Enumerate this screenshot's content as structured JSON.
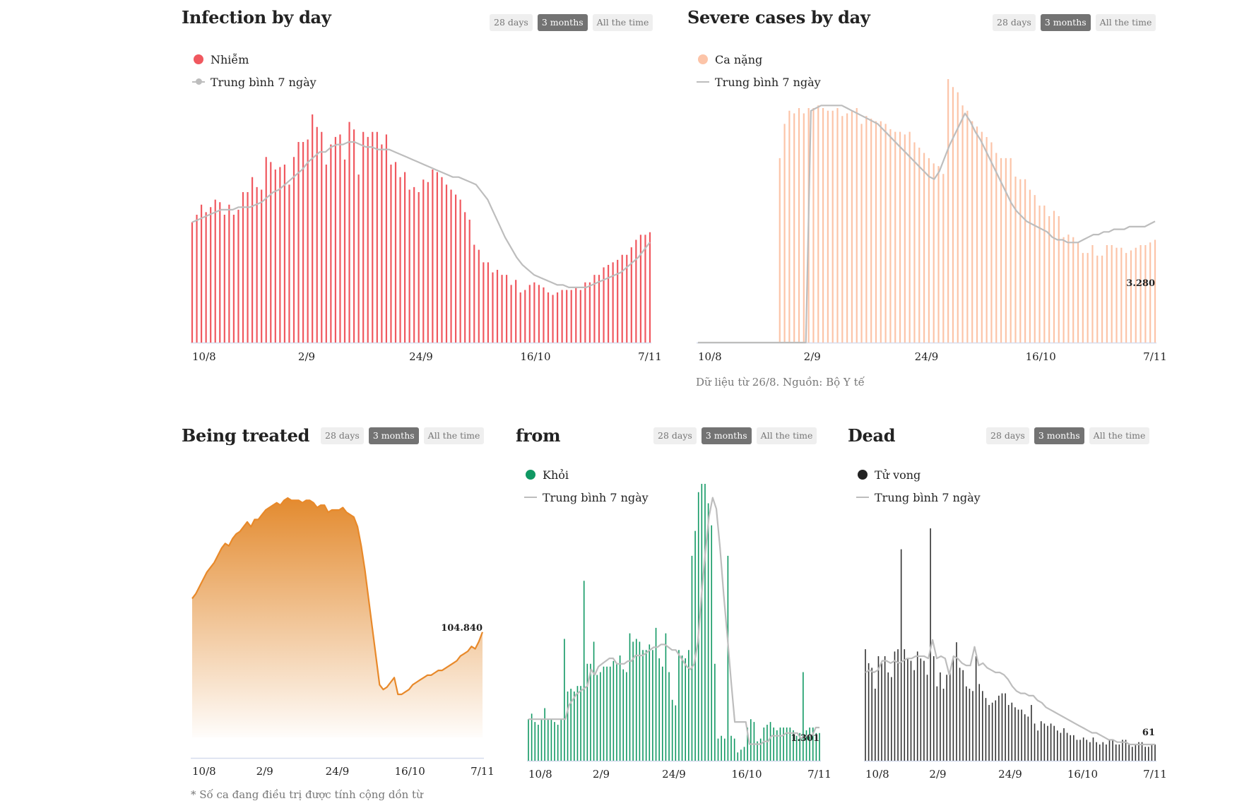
{
  "range_buttons": [
    "28 days",
    "3 months",
    "All the time"
  ],
  "active_range": "3 months",
  "x_ticks": [
    "10/8",
    "2/9",
    "24/9",
    "16/10",
    "7/11"
  ],
  "chart_data": [
    {
      "id": "infection",
      "type": "bar",
      "title": "Infection by day",
      "xlabel": "",
      "ylabel": "",
      "x_start": "10/8",
      "x_end": "7/11",
      "x_ticks": [
        "10/8",
        "2/9",
        "24/9",
        "16/10",
        "7/11"
      ],
      "legend": [
        {
          "label": "Nhiễm",
          "marker": "dot",
          "color": "#f0585f"
        },
        {
          "label": "Trung bình 7 ngày",
          "marker": "line-dot",
          "color": "#bdbdbd"
        }
      ],
      "legend_position": "top-left",
      "ylim": [
        0,
        100
      ],
      "values_note": "relative index (no y-axis shown)",
      "series": [
        {
          "name": "Nhiễm",
          "color": "#f0585f",
          "values": [
            48,
            51,
            55,
            52,
            54,
            57,
            56,
            51,
            55,
            51,
            53,
            60,
            60,
            66,
            62,
            61,
            74,
            72,
            69,
            70,
            71,
            63,
            74,
            80,
            80,
            81,
            91,
            86,
            84,
            71,
            79,
            82,
            83,
            73,
            88,
            85,
            67,
            84,
            82,
            84,
            84,
            79,
            83,
            71,
            72,
            66,
            68,
            61,
            62,
            60,
            65,
            64,
            69,
            68,
            66,
            63,
            61,
            59,
            57,
            52,
            49,
            39,
            37,
            32,
            32,
            28,
            29,
            27,
            27,
            23,
            25,
            20,
            21,
            23,
            24,
            23,
            22,
            20,
            19,
            20,
            21,
            21,
            21,
            22,
            21,
            24,
            24,
            27,
            27,
            30,
            31,
            32,
            33,
            35,
            35,
            38,
            41,
            43,
            43,
            44
          ],
          "display_count": 90
        },
        {
          "name": "Trung bình 7 ngày",
          "color": "#bdbdbd",
          "type": "line",
          "values": [
            48,
            49,
            50,
            51,
            52,
            53,
            53,
            53,
            54,
            54,
            54,
            55,
            56,
            58,
            60,
            61,
            63,
            65,
            67,
            69,
            72,
            74,
            76,
            76,
            78,
            79,
            79,
            80,
            80,
            79,
            78,
            78,
            77,
            77,
            77,
            76,
            75,
            74,
            73,
            72,
            71,
            70,
            69,
            68,
            67,
            66,
            66,
            65,
            64,
            63,
            60,
            57,
            52,
            47,
            42,
            38,
            34,
            31,
            29,
            27,
            26,
            25,
            24,
            23,
            23,
            22,
            22,
            22,
            22,
            23,
            24,
            25,
            26,
            27,
            28,
            30,
            32,
            34,
            37,
            40
          ]
        }
      ]
    },
    {
      "id": "severe",
      "type": "bar",
      "title": "Severe cases by day",
      "x_ticks": [
        "10/8",
        "2/9",
        "24/9",
        "16/10",
        "7/11"
      ],
      "legend": [
        {
          "label": "Ca nặng",
          "marker": "dot",
          "color": "#fcc4a8"
        },
        {
          "label": "Trung bình 7 ngày",
          "marker": "line",
          "color": "#bdbdbd"
        }
      ],
      "legend_position": "top-left",
      "annotation": "3.280",
      "note": "Dữ liệu từ 26/8. Nguồn: Bộ Y tế",
      "ylim": [
        0,
        100
      ],
      "series": [
        {
          "name": "Ca nặng",
          "color": "#fcc4a8",
          "values": [
            0,
            0,
            0,
            0,
            0,
            0,
            0,
            0,
            0,
            0,
            0,
            0,
            0,
            0,
            0,
            0,
            0,
            70,
            83,
            88,
            87,
            89,
            87,
            89,
            89,
            90,
            89,
            88,
            88,
            89,
            86,
            87,
            88,
            89,
            83,
            86,
            85,
            84,
            84,
            83,
            81,
            80,
            80,
            79,
            80,
            76,
            74,
            72,
            70,
            68,
            67,
            64,
            100,
            97,
            95,
            90,
            88,
            84,
            82,
            80,
            78,
            76,
            72,
            70,
            70,
            70,
            63,
            62,
            62,
            58,
            56,
            52,
            52,
            48,
            50,
            48,
            40,
            41,
            40,
            38,
            34,
            34,
            37,
            33,
            33,
            37,
            37,
            36,
            36,
            34,
            35,
            36,
            37,
            37,
            38,
            39
          ],
          "display_count": 90
        },
        {
          "name": "Trung bình 7 ngày",
          "color": "#bdbdbd",
          "type": "line",
          "values": [
            0,
            0,
            0,
            0,
            0,
            0,
            0,
            0,
            0,
            0,
            0,
            0,
            0,
            0,
            0,
            0,
            0,
            0,
            0,
            0,
            0,
            0,
            88,
            89,
            90,
            90,
            90,
            90,
            90,
            89,
            88,
            87,
            86,
            85,
            84,
            83,
            81,
            79,
            77,
            75,
            73,
            71,
            69,
            67,
            65,
            63,
            62,
            65,
            70,
            75,
            79,
            83,
            87,
            84,
            80,
            77,
            73,
            69,
            65,
            61,
            57,
            53,
            50,
            48,
            46,
            45,
            44,
            43,
            42,
            40,
            39,
            39,
            38,
            38,
            38,
            39,
            40,
            41,
            41,
            42,
            42,
            43,
            43,
            43,
            44,
            44,
            44,
            44,
            45,
            46
          ]
        }
      ]
    },
    {
      "id": "treating",
      "type": "area",
      "title": "Being treated",
      "x_ticks": [
        "10/8",
        "2/9",
        "24/9",
        "16/10",
        "7/11"
      ],
      "annotation": "104.840",
      "footnote": "* Số ca đang điều trị được tính cộng dồn từ",
      "ylim": [
        0,
        100
      ],
      "series": [
        {
          "name": "Đang điều trị",
          "color": "#e8892a",
          "values": [
            58,
            60,
            63,
            66,
            69,
            71,
            73,
            76,
            79,
            81,
            80,
            83,
            85,
            86,
            88,
            90,
            88,
            91,
            91,
            93,
            95,
            96,
            97,
            98,
            97,
            99,
            100,
            99,
            99,
            99,
            98,
            99,
            99,
            98,
            96,
            97,
            97,
            94,
            95,
            95,
            95,
            96,
            94,
            93,
            92,
            88,
            80,
            70,
            58,
            46,
            34,
            22,
            20,
            21,
            23,
            25,
            18,
            18,
            19,
            20,
            22,
            23,
            24,
            25,
            26,
            26,
            27,
            28,
            28,
            29,
            30,
            31,
            32,
            34,
            35,
            36,
            38,
            37,
            40,
            44
          ]
        }
      ]
    },
    {
      "id": "recovered",
      "type": "bar",
      "title": "from",
      "x_ticks": [
        "10/8",
        "2/9",
        "24/9",
        "16/10",
        "7/11"
      ],
      "legend": [
        {
          "label": "Khỏi",
          "marker": "dot",
          "color": "#109863"
        },
        {
          "label": "Trung bình 7 ngày",
          "marker": "line",
          "color": "#bdbdbd"
        }
      ],
      "legend_position": "top-left",
      "annotation": "1.301",
      "ylim": [
        0,
        100
      ],
      "series": [
        {
          "name": "Khỏi",
          "color": "#109863",
          "values": [
            15,
            17,
            14,
            13,
            15,
            19,
            15,
            15,
            14,
            13,
            15,
            44,
            25,
            26,
            25,
            27,
            27,
            65,
            35,
            35,
            43,
            31,
            32,
            34,
            34,
            34,
            36,
            35,
            38,
            33,
            32,
            46,
            43,
            44,
            43,
            40,
            40,
            42,
            40,
            48,
            37,
            34,
            46,
            32,
            22,
            20,
            40,
            38,
            37,
            40,
            74,
            83,
            97,
            100,
            100,
            93,
            85,
            35,
            8,
            9,
            8,
            74,
            9,
            8,
            3,
            4,
            5,
            12,
            15,
            14,
            7,
            8,
            12,
            13,
            14,
            12,
            11,
            12,
            12,
            12,
            12,
            11,
            9,
            10,
            32,
            11,
            12,
            12,
            10,
            10
          ]
        },
        {
          "name": "Trung bình 7 ngày",
          "color": "#bdbdbd",
          "type": "line",
          "values": [
            15,
            15,
            15,
            15,
            15,
            15,
            15,
            15,
            15,
            15,
            15,
            20,
            22,
            24,
            25,
            26,
            27,
            33,
            31,
            34,
            35,
            36,
            37,
            37,
            35,
            35,
            35,
            36,
            36,
            38,
            38,
            38,
            39,
            40,
            41,
            41,
            42,
            42,
            41,
            40,
            40,
            38,
            36,
            34,
            33,
            35,
            43,
            60,
            75,
            88,
            95,
            91,
            77,
            60,
            45,
            29,
            14,
            14,
            14,
            14,
            6,
            6,
            6,
            6,
            7,
            7,
            9,
            9,
            9,
            9,
            10,
            10,
            10,
            10,
            8,
            9,
            9,
            9,
            12,
            12
          ]
        }
      ]
    },
    {
      "id": "dead",
      "type": "bar",
      "title": "Dead",
      "x_ticks": [
        "10/8",
        "2/9",
        "24/9",
        "16/10",
        "7/11"
      ],
      "legend": [
        {
          "label": "Tử vong",
          "marker": "dot",
          "color": "#222222"
        },
        {
          "label": "Trung bình 7 ngày",
          "marker": "line",
          "color": "#bdbdbd"
        }
      ],
      "legend_position": "top-left",
      "annotation": "61",
      "ylim": [
        0,
        100
      ],
      "series": [
        {
          "name": "Tử vong",
          "color": "#333333",
          "values": [
            48,
            42,
            40,
            31,
            45,
            42,
            45,
            38,
            36,
            47,
            48,
            91,
            48,
            44,
            43,
            39,
            47,
            44,
            43,
            37,
            100,
            45,
            32,
            38,
            31,
            37,
            38,
            45,
            51,
            40,
            39,
            32,
            31,
            30,
            45,
            33,
            30,
            27,
            24,
            25,
            26,
            28,
            29,
            29,
            24,
            25,
            23,
            22,
            22,
            20,
            19,
            24,
            16,
            13,
            17,
            16,
            15,
            16,
            15,
            13,
            12,
            14,
            12,
            11,
            11,
            9,
            9,
            10,
            9,
            8,
            10,
            8,
            7,
            8,
            7,
            9,
            9,
            7,
            7,
            9,
            9,
            7,
            6,
            7,
            8,
            8,
            6,
            6,
            7,
            7
          ]
        },
        {
          "name": "Trung bình 7 ngày",
          "color": "#bdbdbd",
          "type": "line",
          "values": [
            38,
            39,
            38,
            39,
            43,
            43,
            42,
            43,
            42,
            43,
            44,
            44,
            45,
            45,
            45,
            44,
            52,
            44,
            45,
            44,
            37,
            45,
            44,
            42,
            41,
            41,
            49,
            41,
            42,
            40,
            39,
            38,
            38,
            37,
            35,
            32,
            30,
            29,
            29,
            28,
            28,
            26,
            25,
            23,
            22,
            21,
            20,
            19,
            18,
            17,
            16,
            15,
            14,
            13,
            12,
            12,
            11,
            10,
            9,
            9,
            8,
            8,
            8,
            7,
            7,
            7,
            7,
            7,
            7,
            7
          ]
        }
      ]
    }
  ]
}
